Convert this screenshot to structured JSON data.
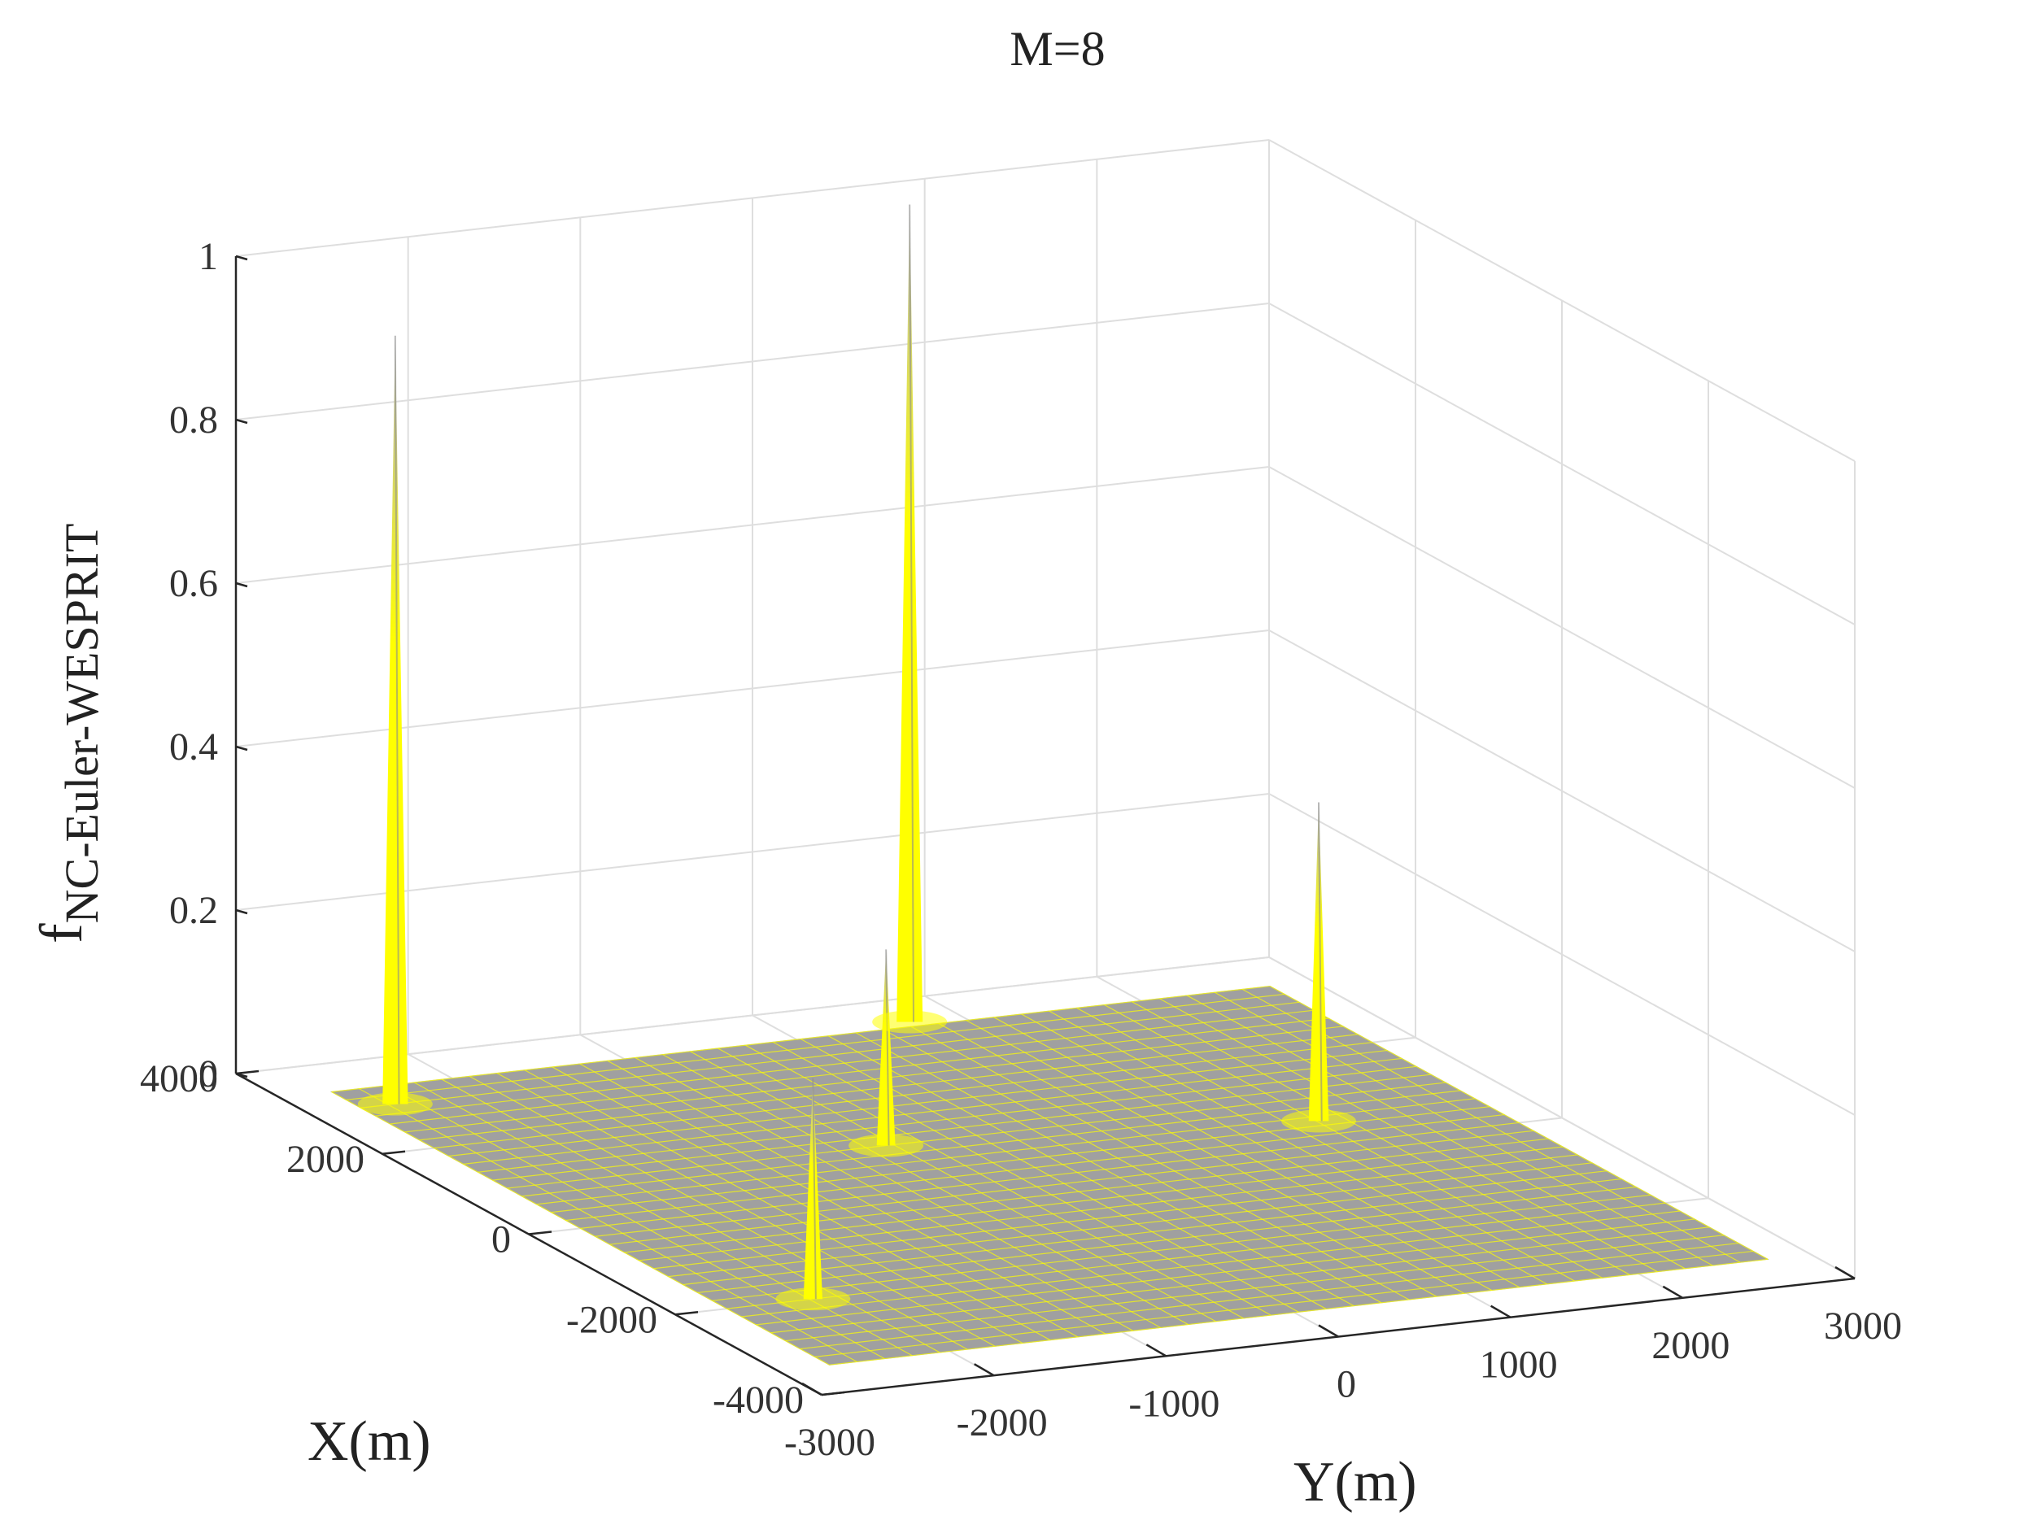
{
  "chart_data": {
    "type": "surface",
    "title": "M=8",
    "xlabel": "X(m)",
    "ylabel": "Y(m)",
    "zlabel_main": "f",
    "zlabel_sub": "NC-Euler-WESPRIT",
    "xlim": [
      -4000,
      4000
    ],
    "ylim": [
      -3000,
      3000
    ],
    "zlim": [
      0,
      1
    ],
    "x_ticks": [
      -4000,
      -2000,
      0,
      2000,
      4000
    ],
    "y_ticks": [
      -3000,
      -2000,
      -1000,
      0,
      1000,
      2000,
      3000
    ],
    "z_ticks": [
      0,
      0.2,
      0.4,
      0.6,
      0.8,
      1
    ],
    "x_tick_labels": [
      "-4000",
      "-2000",
      "0",
      "2000",
      "4000"
    ],
    "y_tick_labels": [
      "-3000",
      "-2000",
      "-1000",
      "0",
      "1000",
      "2000",
      "3000"
    ],
    "z_tick_labels": [
      "0",
      "0.2",
      "0.4",
      "0.6",
      "0.8",
      "1"
    ],
    "grid": true,
    "colors": {
      "surface": "#a0a0a0",
      "mesh": "#ffff00",
      "peak_top": "#b8b8b8",
      "axis": "#262626",
      "grid": "#dedede"
    },
    "peaks": [
      {
        "x": 3000,
        "y": -2500,
        "z": 0.94
      },
      {
        "x": -2000,
        "y": -2200,
        "z": 0.27
      },
      {
        "x": 1000,
        "y": -500,
        "z": 0.24
      },
      {
        "x": 3500,
        "y": 700,
        "z": 1.0
      },
      {
        "x": 500,
        "y": 1800,
        "z": 0.39
      }
    ]
  }
}
